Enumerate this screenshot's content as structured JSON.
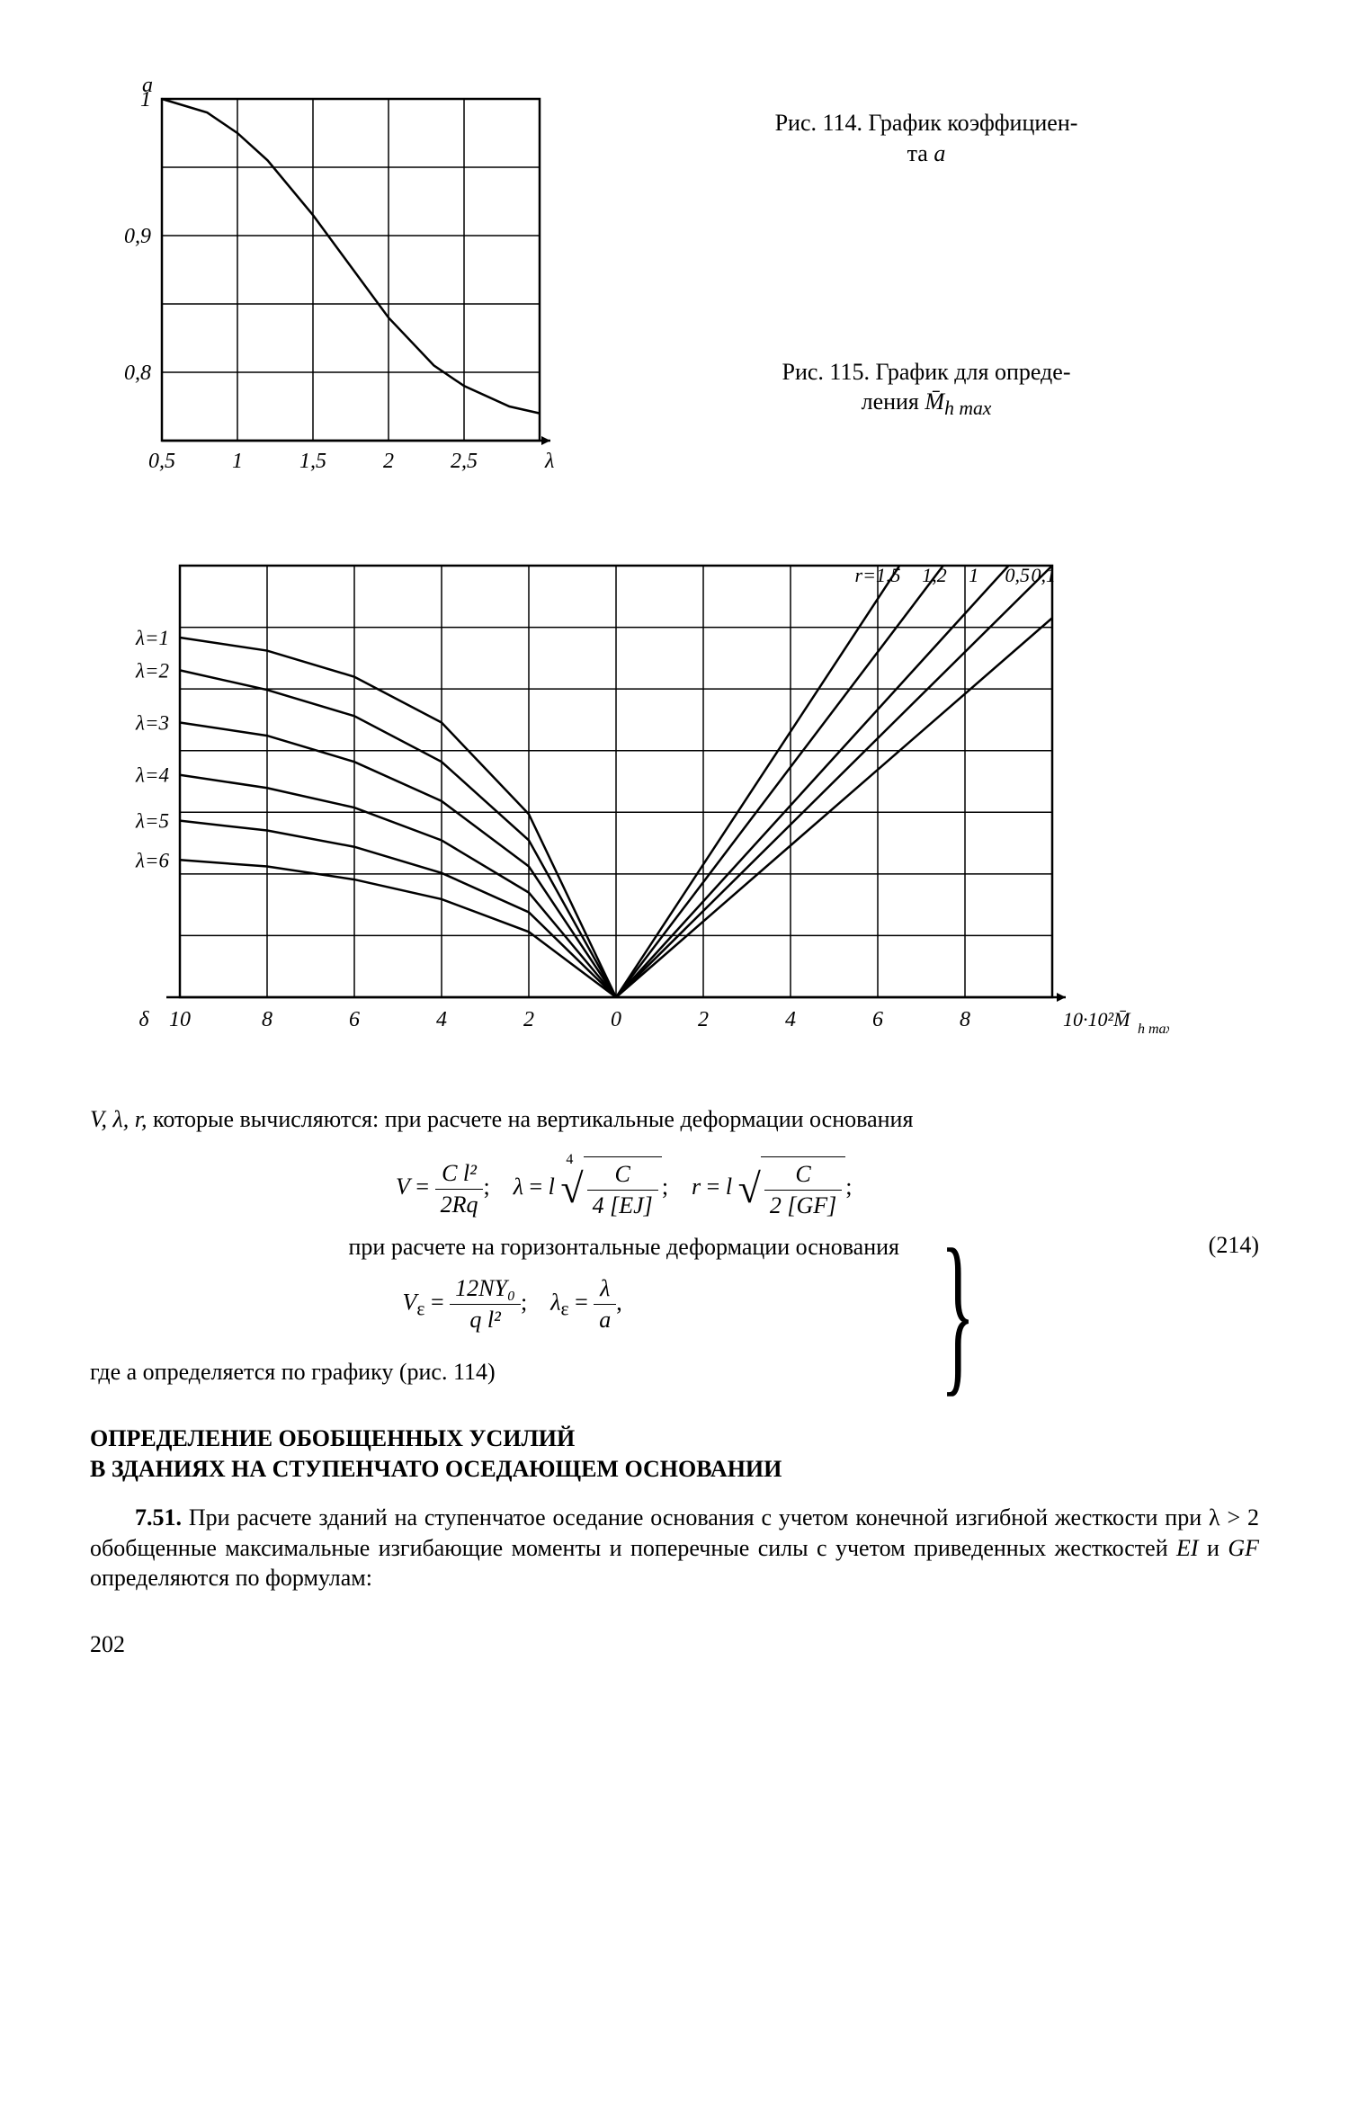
{
  "page_number": "202",
  "fig114": {
    "caption_prefix": "Рис. 114. График коэффициен-",
    "caption_suffix": "та ",
    "caption_var": "a",
    "type": "line",
    "y_axis_label": "a",
    "x_axis_label": "λ",
    "x_ticks": [
      "0,5",
      "1",
      "1,5",
      "2",
      "2,5"
    ],
    "y_ticks": [
      "1",
      "0,9",
      "0,8"
    ],
    "xlim": [
      0.5,
      3.0
    ],
    "ylim": [
      0.75,
      1.0
    ],
    "curve": [
      [
        0.5,
        1.0
      ],
      [
        0.8,
        0.99
      ],
      [
        1.0,
        0.975
      ],
      [
        1.2,
        0.955
      ],
      [
        1.5,
        0.915
      ],
      [
        1.8,
        0.87
      ],
      [
        2.0,
        0.84
      ],
      [
        2.3,
        0.805
      ],
      [
        2.5,
        0.79
      ],
      [
        2.8,
        0.775
      ],
      [
        3.0,
        0.77
      ]
    ],
    "grid_color": "#000000",
    "line_color": "#000000",
    "line_width": 2.5
  },
  "fig115": {
    "caption_prefix": "Рис. 115. График для опреде-",
    "caption_suffix": "ления ",
    "caption_var": "M̄",
    "caption_sub": "h max",
    "type": "line",
    "left_label": "δ",
    "right_label": "10·10²M̄",
    "right_label_sub": "h max",
    "x_ticks_left": [
      "10",
      "8",
      "6",
      "4",
      "2"
    ],
    "x_ticks_right": [
      "0",
      "2",
      "4",
      "6",
      "8"
    ],
    "lambda_labels": [
      "λ=1",
      "λ=2",
      "λ=3",
      "λ=4",
      "λ=5",
      "λ=6"
    ],
    "r_labels": [
      "r=1,5",
      "1,2",
      "1",
      "0,5",
      "0,1"
    ],
    "left_curves": [
      [
        [
          -10,
          5.5
        ],
        [
          -8,
          5.3
        ],
        [
          -6,
          4.9
        ],
        [
          -4,
          4.2
        ],
        [
          -2,
          2.8
        ],
        [
          0,
          0
        ]
      ],
      [
        [
          -10,
          5.0
        ],
        [
          -8,
          4.7
        ],
        [
          -6,
          4.3
        ],
        [
          -4,
          3.6
        ],
        [
          -2,
          2.4
        ],
        [
          0,
          0
        ]
      ],
      [
        [
          -10,
          4.2
        ],
        [
          -8,
          4.0
        ],
        [
          -6,
          3.6
        ],
        [
          -4,
          3.0
        ],
        [
          -2,
          2.0
        ],
        [
          0,
          0
        ]
      ],
      [
        [
          -10,
          3.4
        ],
        [
          -8,
          3.2
        ],
        [
          -6,
          2.9
        ],
        [
          -4,
          2.4
        ],
        [
          -2,
          1.6
        ],
        [
          0,
          0
        ]
      ],
      [
        [
          -10,
          2.7
        ],
        [
          -8,
          2.55
        ],
        [
          -6,
          2.3
        ],
        [
          -4,
          1.9
        ],
        [
          -2,
          1.3
        ],
        [
          0,
          0
        ]
      ],
      [
        [
          -10,
          2.1
        ],
        [
          -8,
          2.0
        ],
        [
          -6,
          1.8
        ],
        [
          -4,
          1.5
        ],
        [
          -2,
          1.0
        ],
        [
          0,
          0
        ]
      ]
    ],
    "right_lines": [
      [
        [
          0,
          0
        ],
        [
          10,
          5.8
        ]
      ],
      [
        [
          0,
          0
        ],
        [
          10,
          6.6
        ]
      ],
      [
        [
          0,
          0
        ],
        [
          9.0,
          6.6
        ]
      ],
      [
        [
          0,
          0
        ],
        [
          7.5,
          6.6
        ]
      ],
      [
        [
          0,
          0
        ],
        [
          6.5,
          6.6
        ]
      ]
    ],
    "grid_color": "#000000",
    "line_color": "#000000",
    "line_width": 2.5,
    "ylim": [
      0,
      6.6
    ]
  },
  "text": {
    "p1_prefix": "V, λ, r,",
    "p1_rest": " которые вычисляются: при расчете на вертикальные деформации основания",
    "eq_num": "(214)",
    "p2": "при расчете на горизонтальные деформации основания",
    "p3": "где a определяется по графику (рис. 114)",
    "heading_l1": "ОПРЕДЕЛЕНИЕ ОБОБЩЕННЫХ УСИЛИЙ",
    "heading_l2": "В ЗДАНИЯХ НА СТУПЕНЧАТО ОСЕДАЮЩЕМ ОСНОВАНИИ",
    "p4_num": "7.51.",
    "p4": " При расчете зданий на ступенчатое оседание основания с учетом конечной изгибной жесткости при λ > 2 обобщенные максимальные изгибающие моменты и поперечные силы с учетом приведенных жесткостей ",
    "p4_var1": "EI",
    "p4_mid": " и ",
    "p4_var2": "GF",
    "p4_end": " определяются по формулам:"
  },
  "formulas": {
    "V_eq": {
      "num": "C l²",
      "den": "2Rq"
    },
    "lambda_eq": {
      "idx": "4",
      "num": "C",
      "den": "4 [EJ]"
    },
    "r_eq": {
      "num": "C",
      "den": "2 [GF]"
    },
    "Ve_eq": {
      "num": "12NY₀",
      "den": "q l²"
    },
    "lambdae_eq": {
      "num": "λ",
      "den": "a"
    }
  }
}
